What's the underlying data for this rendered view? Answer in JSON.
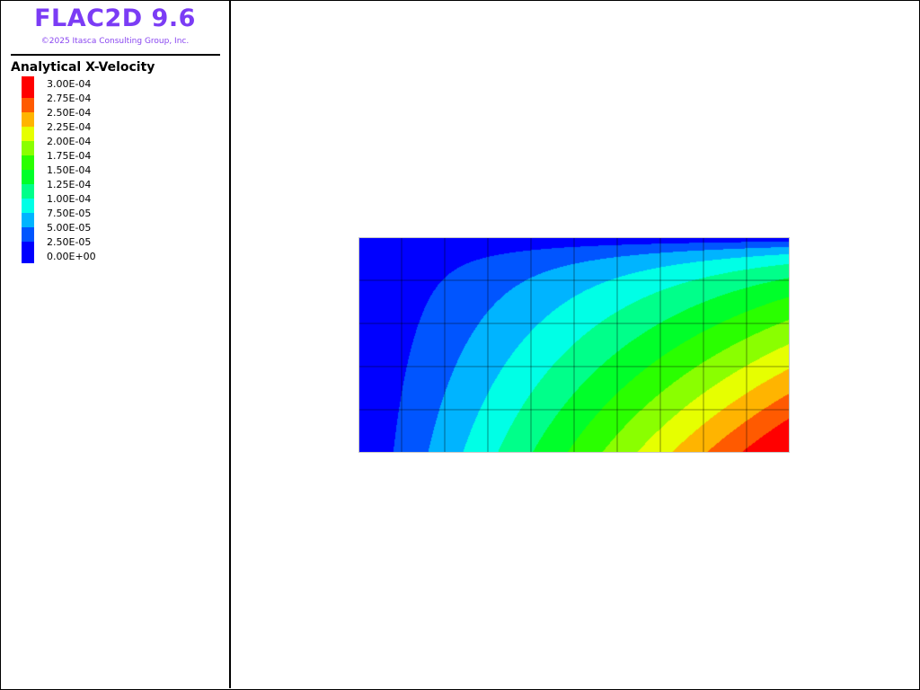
{
  "header": {
    "title": "FLAC2D 9.6",
    "copyright": "©2025 Itasca Consulting Group, Inc."
  },
  "legend": {
    "title": "Analytical X-Velocity",
    "labels": [
      "3.00E-04",
      "2.75E-04",
      "2.50E-04",
      "2.25E-04",
      "2.00E-04",
      "1.75E-04",
      "1.50E-04",
      "1.25E-04",
      "1.00E-04",
      "7.50E-05",
      "5.00E-05",
      "2.50E-05",
      "0.00E+00"
    ],
    "colors_top_to_bottom": [
      "#ff0000",
      "#ff5a00",
      "#ffb400",
      "#e6ff00",
      "#8aff00",
      "#2aff00",
      "#00ff2a",
      "#00ff8a",
      "#00ffe6",
      "#00b4ff",
      "#0055ff",
      "#0000ff"
    ]
  },
  "plot": {
    "quantity": "x-velocity",
    "min": 0,
    "max": 0.0003,
    "interval": 2.5e-05,
    "mesh_columns": 10,
    "mesh_rows": 5,
    "grid_color": "#000000",
    "border_color": "#c8c8c8"
  }
}
